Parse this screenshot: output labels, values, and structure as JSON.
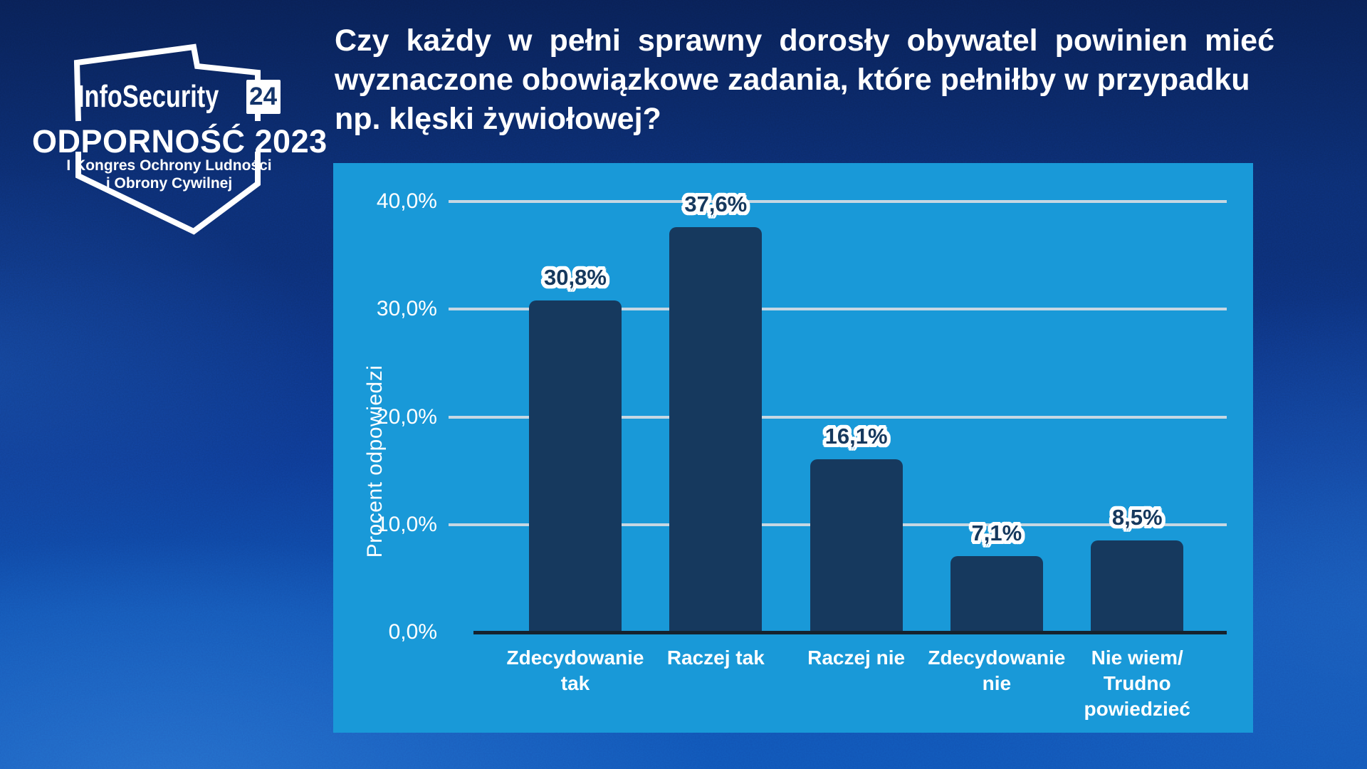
{
  "logo": {
    "brand": "InfoSecurity",
    "badge": "24",
    "title": "ODPORNOŚĆ 2023",
    "subtitle_line1": "I Kongres Ochrony Ludności",
    "subtitle_line2": "i Obrony Cywilnej"
  },
  "question": {
    "line1": "Czy każdy w pełni sprawny dorosły obywatel powinien mieć",
    "line2": "wyznaczone obowiązkowe zadania, które pełniłby w przypadku",
    "line3": "np. klęski żywiołowej?"
  },
  "chart_data": {
    "type": "bar",
    "categories": [
      "Zdecydowanie\ntak",
      "Raczej tak",
      "Raczej nie",
      "Zdecydowanie\nnie",
      "Nie wiem/\nTrudno\npowiedzieć"
    ],
    "values": [
      30.8,
      37.6,
      16.1,
      7.1,
      8.5
    ],
    "value_labels": [
      "30,8%",
      "37,6%",
      "16,1%",
      "7,1%",
      "8,5%"
    ],
    "title": "",
    "xlabel": "",
    "ylabel": "Procent odpowiedzi",
    "ylim": [
      0,
      43.5
    ],
    "yticks": [
      {
        "value": 0,
        "label": "0,0%"
      },
      {
        "value": 10,
        "label": "10,0%"
      },
      {
        "value": 20,
        "label": "20,0%"
      },
      {
        "value": 30,
        "label": "30,0%"
      },
      {
        "value": 40,
        "label": "40,0%"
      }
    ],
    "grid": true,
    "legend": false,
    "colors": {
      "bar": "#16395e",
      "plot_background": "#1999d8",
      "gridline": "#c6d7e3",
      "axis_line": "#15222e",
      "tick_text": "#ffffff",
      "value_label_text": "#16395e",
      "value_label_outline": "#ffffff"
    }
  },
  "theme": {
    "background_top": "#0d2b68",
    "background_bottom": "#1254b4",
    "text": "#ffffff"
  }
}
